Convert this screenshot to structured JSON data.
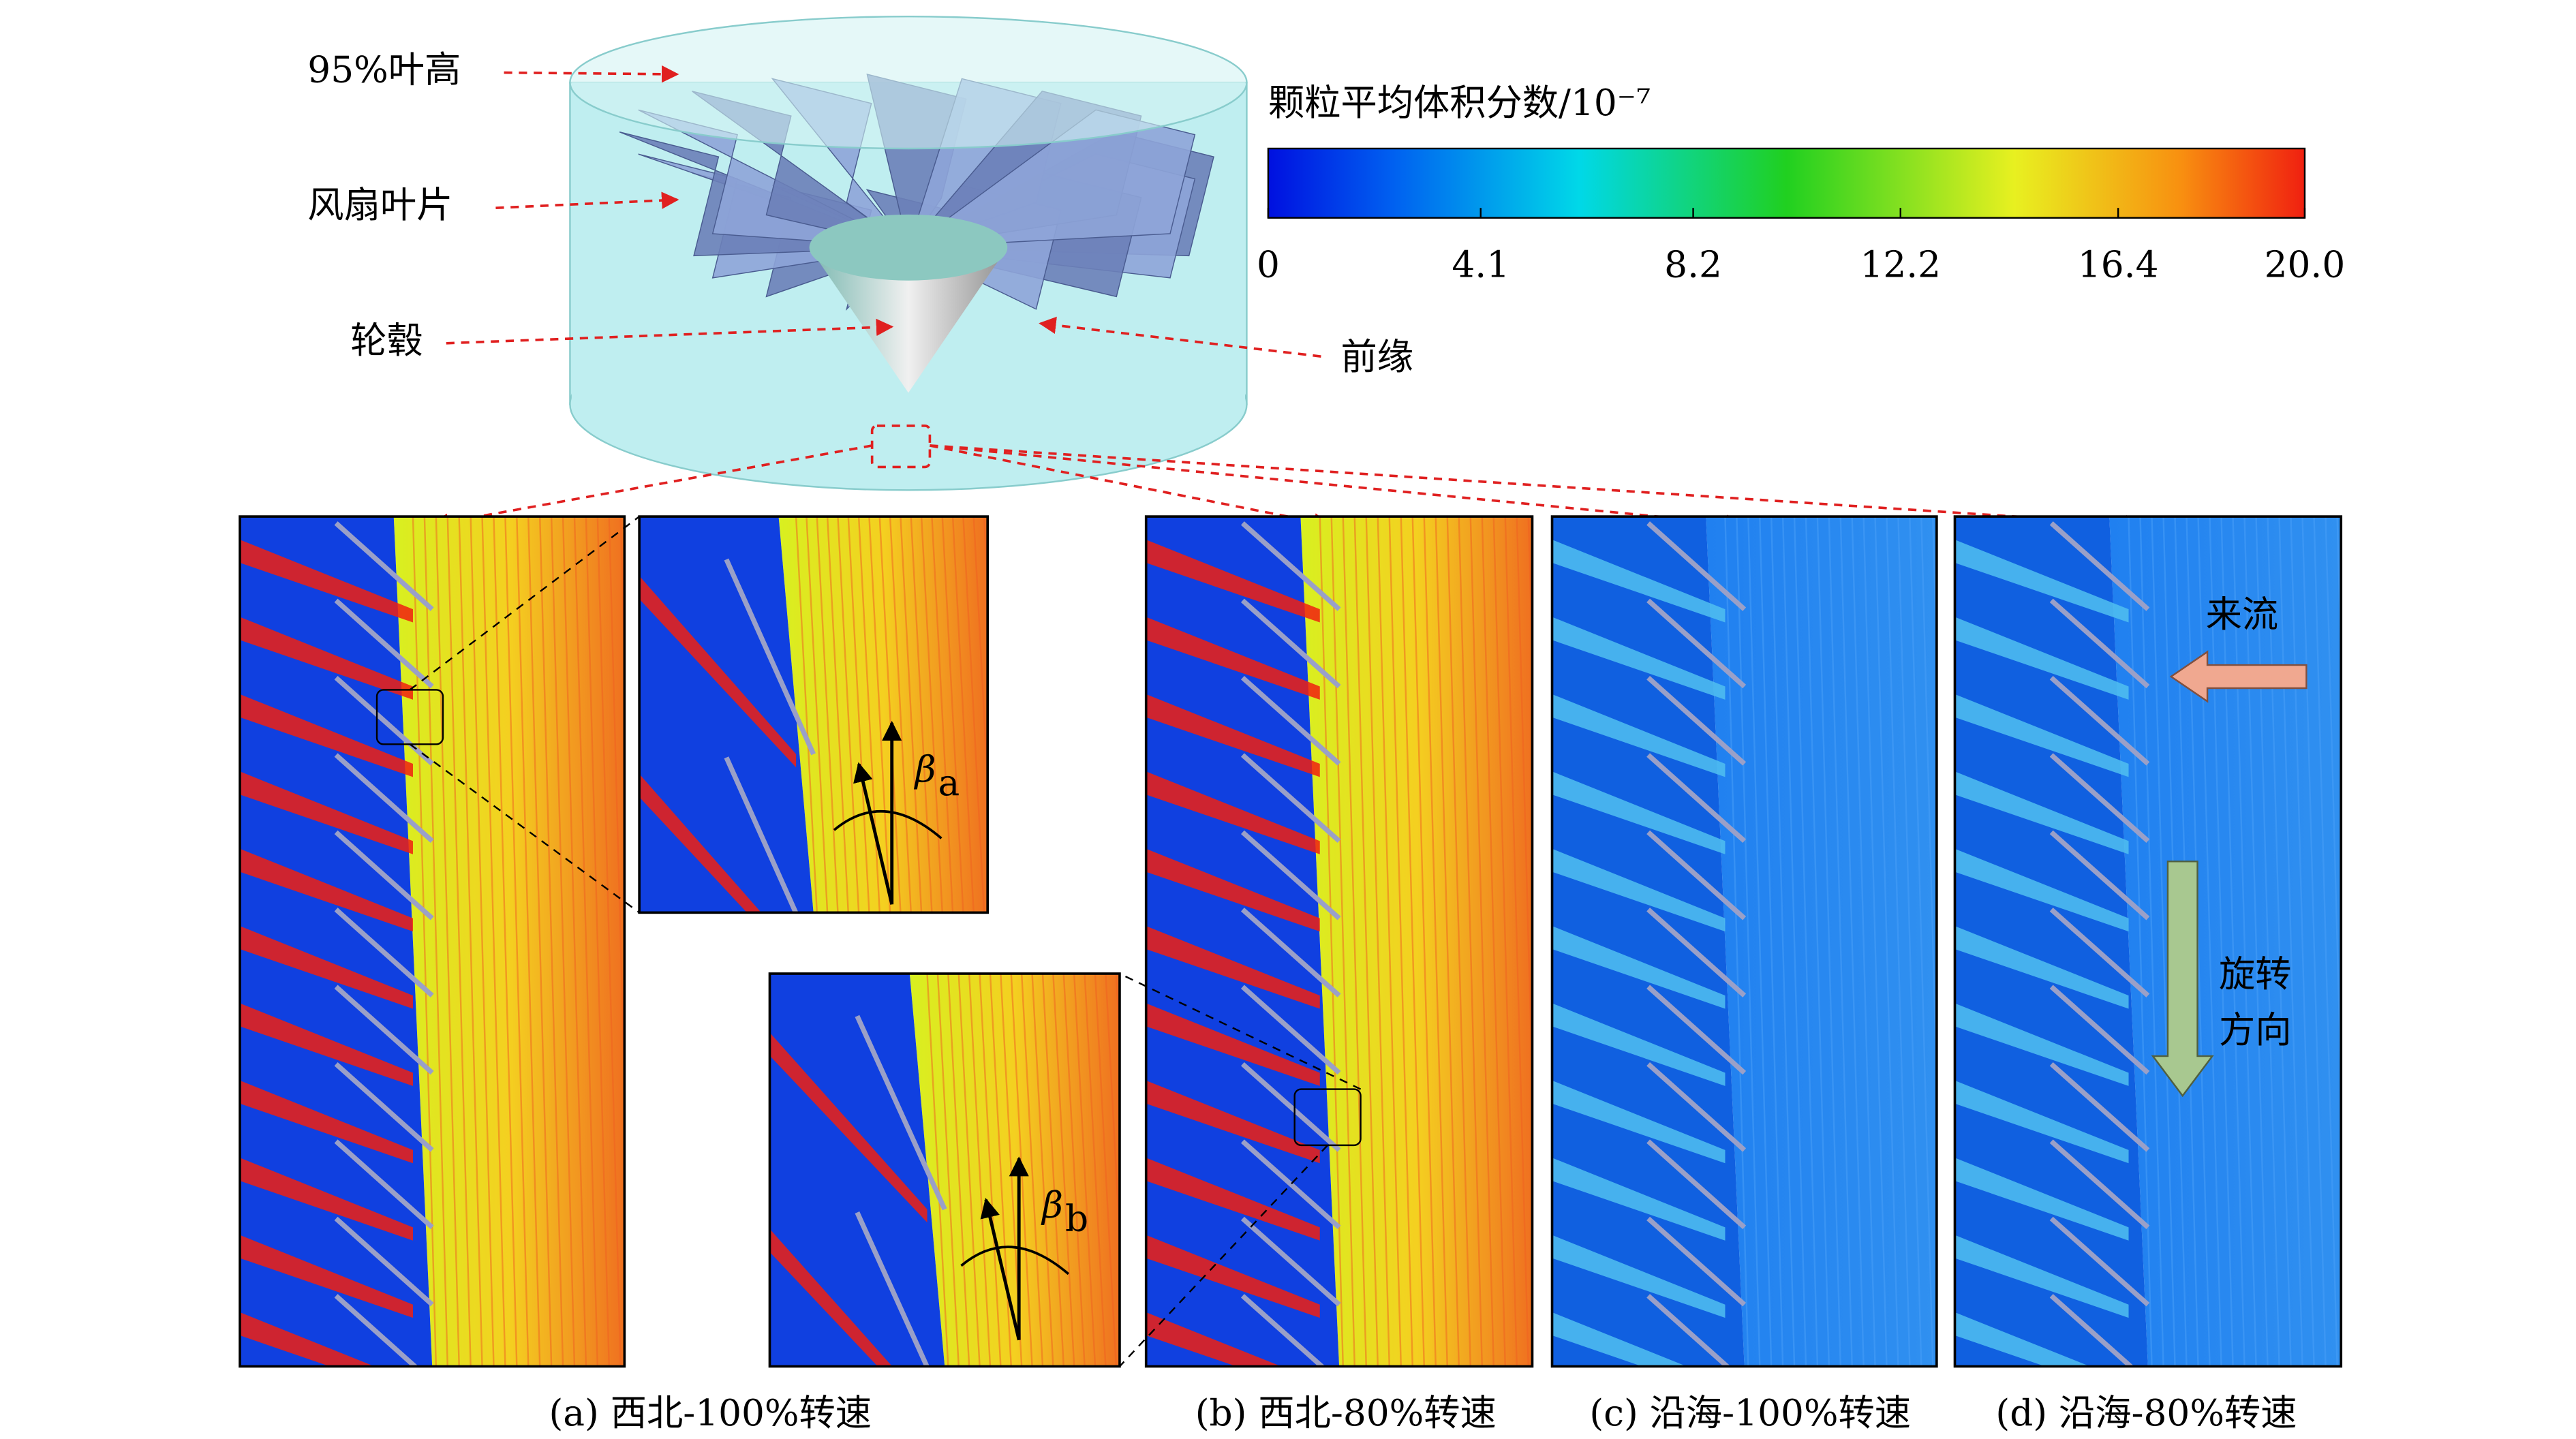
{
  "figure": {
    "labels": {
      "blade_height": "95%叶高",
      "fan_blade": "风扇叶片",
      "hub": "轮毂",
      "leading_edge": "前缘"
    },
    "colorbar": {
      "title": "颗粒平均体积分数/10⁻⁷",
      "lim": [
        0,
        20
      ],
      "ticks": [
        0,
        4.1,
        8.2,
        12.2,
        16.4,
        {
          "value": 20,
          "label": "20.0"
        }
      ]
    },
    "annotations": {
      "inflow": "来流",
      "rotation": [
        "旋转",
        "方向"
      ],
      "angle_a": {
        "symbol": "β",
        "subscript": "a"
      },
      "angle_b": {
        "symbol": "β",
        "subscript": "b"
      }
    },
    "captions": [
      "(a) 西北-100%转速",
      "(b) 西北-80%转速",
      "(c) 沿海-100%转速",
      "(d) 沿海-80%转速"
    ]
  }
}
